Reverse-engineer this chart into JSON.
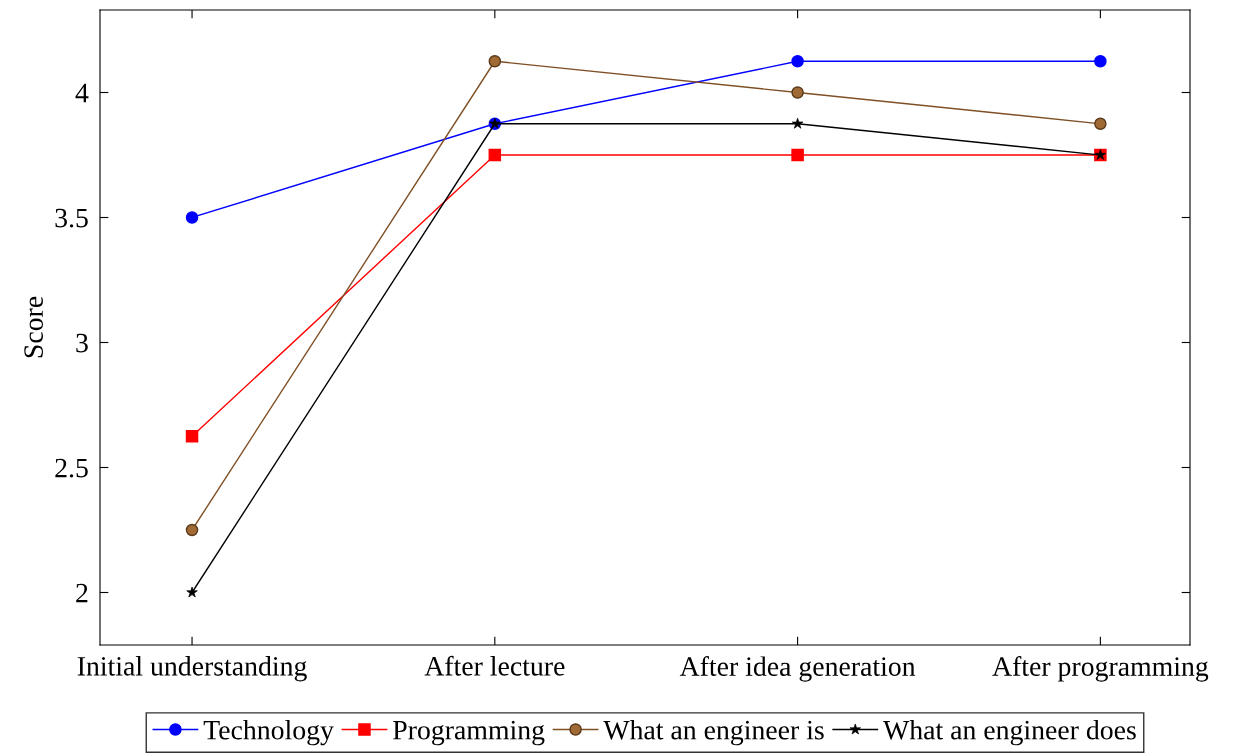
{
  "chart_data": {
    "type": "line",
    "ylabel": "Score",
    "categories": [
      "Initial understanding",
      "After lecture",
      "After idea generation",
      "After programming"
    ],
    "series": [
      {
        "name": "Technology",
        "color": "#0000ff",
        "marker": "circle",
        "values": [
          3.5,
          3.875,
          4.125,
          4.125
        ]
      },
      {
        "name": "Programming",
        "color": "#ff0000",
        "marker": "square",
        "values": [
          2.625,
          3.75,
          3.75,
          3.75
        ]
      },
      {
        "name": "What an engineer is",
        "color": "#7f4f25",
        "marker": "circle",
        "values": [
          2.25,
          4.125,
          4.0,
          3.875
        ]
      },
      {
        "name": "What an engineer does",
        "color": "#000000",
        "marker": "star",
        "values": [
          2.0,
          3.875,
          3.875,
          3.75
        ]
      }
    ],
    "ylim": [
      1.79,
      4.33
    ],
    "yticks": [
      2,
      2.5,
      3,
      3.5,
      4
    ],
    "grid": false,
    "legend": "bottom",
    "line_style": "solid"
  }
}
